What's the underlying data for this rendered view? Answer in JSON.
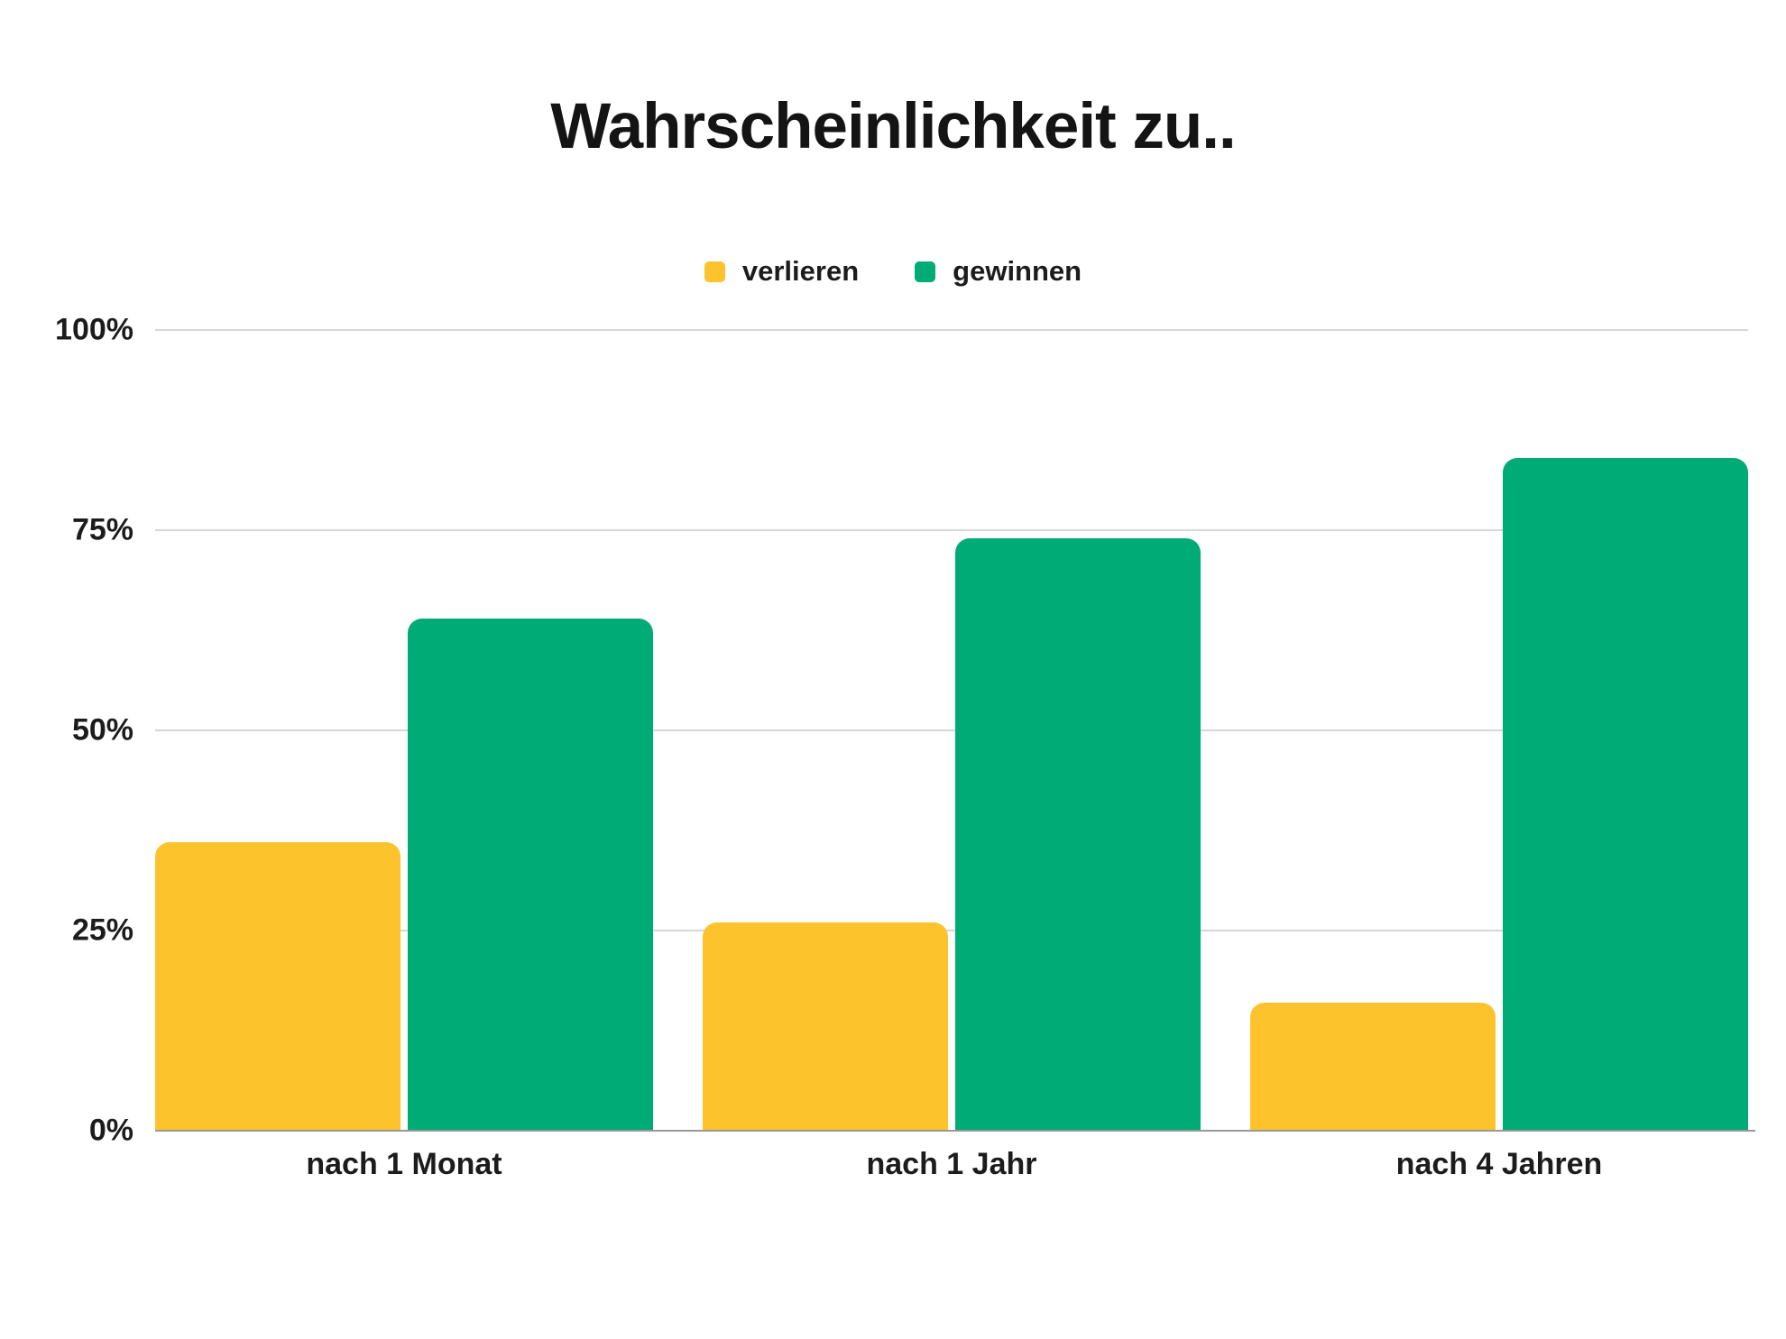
{
  "title": "Wahrscheinlichkeit zu..",
  "chart_data": {
    "type": "bar",
    "title": "Wahrscheinlichkeit zu..",
    "categories": [
      "nach 1 Monat",
      "nach 1 Jahr",
      "nach 4 Jahren"
    ],
    "series": [
      {
        "name": "verlieren",
        "color": "#FCC32D",
        "values": [
          36,
          26,
          16
        ]
      },
      {
        "name": "gewinnen",
        "color": "#00AB76",
        "values": [
          64,
          74,
          84
        ]
      }
    ],
    "y_ticks": [
      {
        "label": "100%",
        "value": 100
      },
      {
        "label": "75%",
        "value": 75
      },
      {
        "label": "50%",
        "value": 50
      },
      {
        "label": "25%",
        "value": 25
      },
      {
        "label": "0%",
        "value": 0
      }
    ],
    "ylim": [
      0,
      100
    ],
    "grid": "horizontal",
    "legend_position": "top-center",
    "gridline_color": "#d7d7d7",
    "baseline_color": "#999999",
    "background_color": "#ffffff",
    "text_color": "#1c1c1c"
  }
}
